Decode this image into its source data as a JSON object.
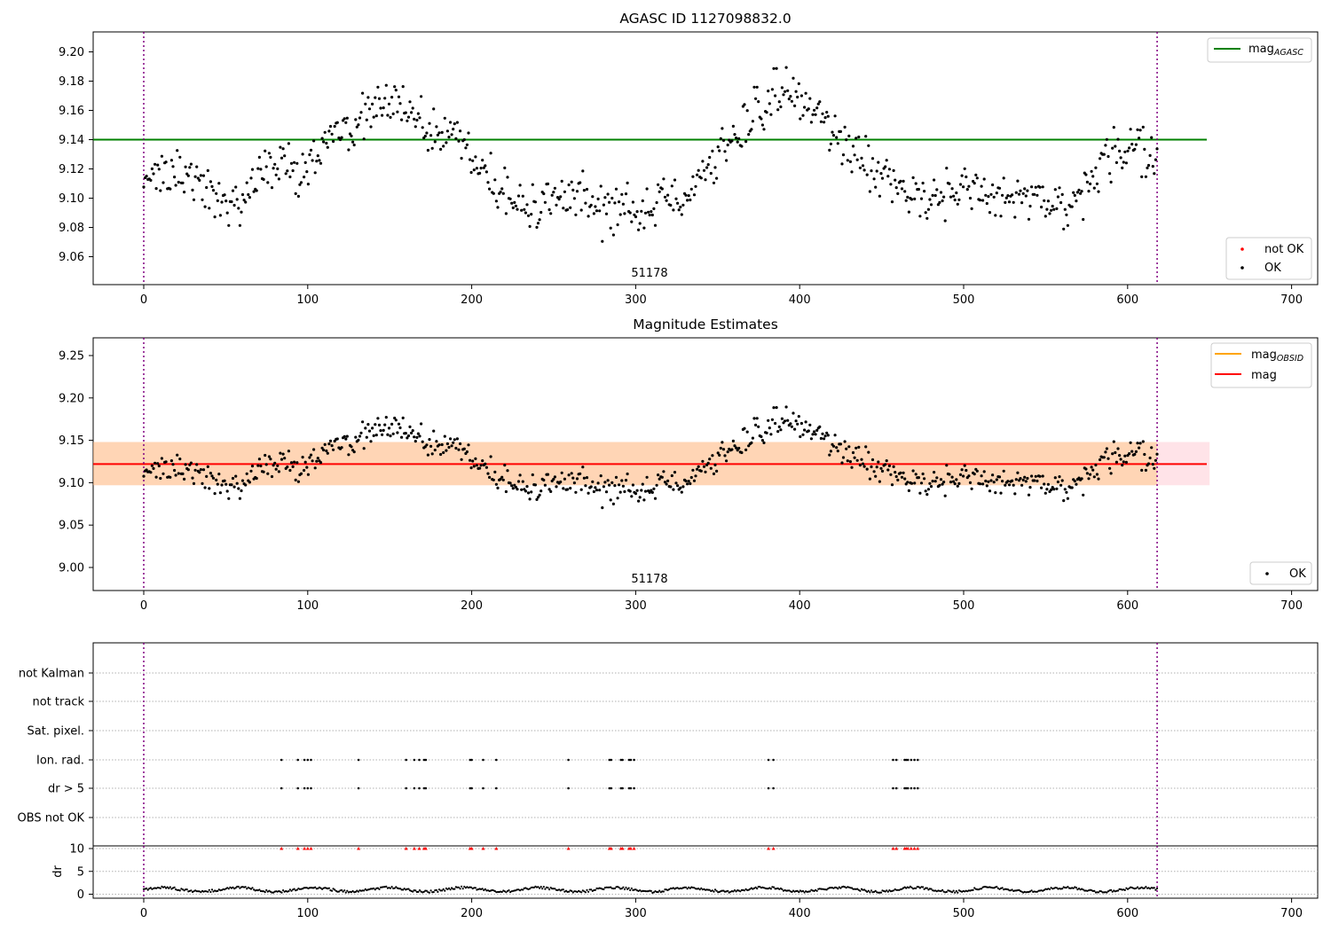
{
  "panels": {
    "top": {
      "title": "AGASC ID 1127098832.0",
      "obsid_label": "51178",
      "xlim": [
        -31,
        717
      ],
      "ylim": [
        9.0,
        9.217
      ],
      "xticks": [
        "0",
        "100",
        "200",
        "300",
        "400",
        "500",
        "600",
        "700"
      ],
      "yticks": [
        "9.06",
        "9.08",
        "9.10",
        "9.12",
        "9.14",
        "9.16",
        "9.18",
        "9.20"
      ],
      "legend_lines": [
        {
          "label": "mag",
          "subscript": "AGASC",
          "color": "#008000"
        }
      ],
      "legend_points": [
        {
          "label": "not OK",
          "color": "#ff0000"
        },
        {
          "label": "OK",
          "color": "#000000"
        }
      ]
    },
    "middle": {
      "title": "Magnitude Estimates",
      "obsid_label": "51178",
      "xlim": [
        -31,
        717
      ],
      "ylim": [
        8.973,
        9.271
      ],
      "xticks": [
        "0",
        "100",
        "200",
        "300",
        "400",
        "500",
        "600",
        "700"
      ],
      "yticks": [
        "9.00",
        "9.05",
        "9.10",
        "9.15",
        "9.20",
        "9.25"
      ],
      "legend_lines": [
        {
          "label": "mag",
          "subscript": "OBSID",
          "color": "#ffa500"
        },
        {
          "label": "mag",
          "subscript": "",
          "color": "#ff0000"
        }
      ],
      "legend_points": [
        {
          "label": "OK",
          "color": "#000000"
        }
      ]
    },
    "bottom": {
      "flag_labels": [
        "not Kalman",
        "not track",
        "Sat. pixel.",
        "Ion. rad.",
        "dr > 5",
        "OBS not OK"
      ],
      "dr_label": "dr",
      "dr_ticks": [
        "0",
        "5",
        "10"
      ],
      "xticks": [
        "0",
        "100",
        "200",
        "300",
        "400",
        "500",
        "600",
        "700"
      ]
    }
  },
  "chart_data": {
    "type": "scatter",
    "x_range": [
      0,
      618
    ],
    "obsid": "51178",
    "observation_boundaries": [
      0,
      618
    ],
    "mag_agasc": 9.14,
    "mag_obsid": 9.122,
    "mag_mean": 9.122,
    "mag_band": [
      9.097,
      9.148
    ],
    "mag_series_keypoints": {
      "x": [
        0,
        15,
        30,
        45,
        55,
        65,
        80,
        95,
        110,
        125,
        145,
        160,
        175,
        190,
        200,
        215,
        230,
        245,
        260,
        275,
        290,
        305,
        320,
        335,
        350,
        365,
        385,
        400,
        415,
        430,
        445,
        460,
        475,
        490,
        505,
        520,
        535,
        550,
        565,
        575,
        590,
        605,
        618
      ],
      "y": [
        9.113,
        9.12,
        9.115,
        9.1,
        9.095,
        9.108,
        9.125,
        9.118,
        9.138,
        9.148,
        9.163,
        9.162,
        9.142,
        9.148,
        9.125,
        9.112,
        9.095,
        9.098,
        9.1,
        9.093,
        9.092,
        9.095,
        9.098,
        9.112,
        9.13,
        9.148,
        9.172,
        9.168,
        9.152,
        9.135,
        9.118,
        9.108,
        9.1,
        9.103,
        9.107,
        9.1,
        9.1,
        9.093,
        9.094,
        9.105,
        9.128,
        9.138,
        9.125
      ]
    },
    "flagged_times": [
      84,
      94,
      98,
      100,
      102,
      131,
      160,
      165,
      168,
      171,
      172,
      199,
      200,
      207,
      215,
      259,
      284,
      285,
      291,
      292,
      296,
      297,
      299,
      381,
      384,
      457,
      459,
      464,
      465,
      466,
      468,
      470,
      472
    ],
    "flag_rows": [
      "not Kalman",
      "not track",
      "Sat. pixel.",
      "Ion. rad.",
      "dr > 5",
      "OBS not OK"
    ],
    "flags_set": {
      "Ion. rad.": "flagged_times",
      "dr > 5": "flagged_times"
    },
    "dr_typical": 1.0,
    "dr_ylim": [
      0,
      10
    ]
  }
}
